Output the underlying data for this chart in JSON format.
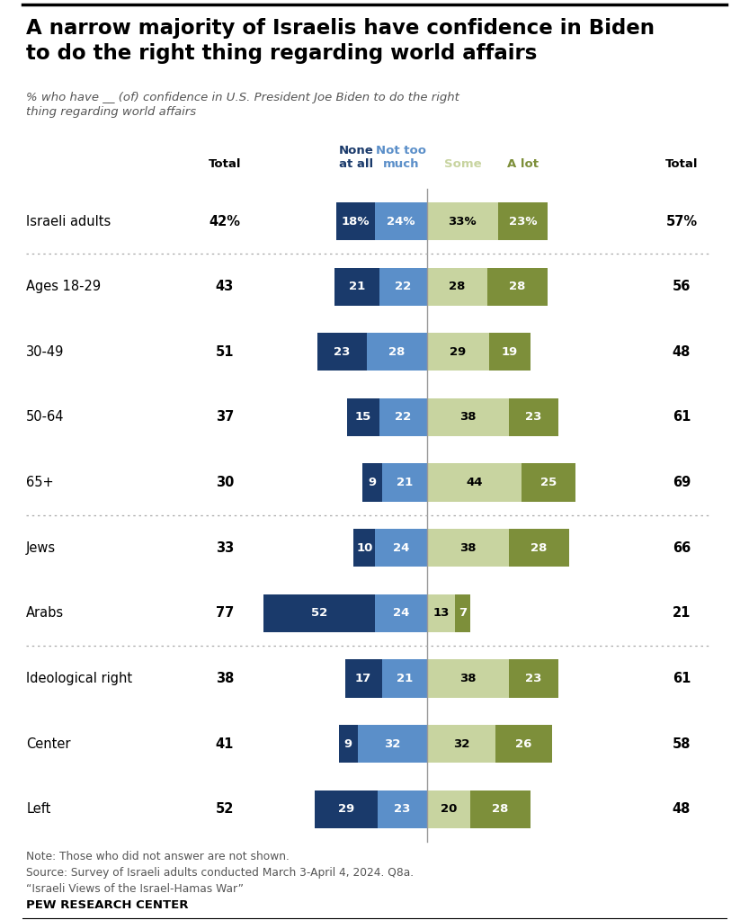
{
  "title": "A narrow majority of Israelis have confidence in Biden\nto do the right thing regarding world affairs",
  "subtitle": "% who have __ (of) confidence in U.S. President Joe Biden to do the right\nthing regarding world affairs",
  "categories": [
    "Israeli adults",
    "Ages 18-29",
    "30-49",
    "50-64",
    "65+",
    "Jews",
    "Arabs",
    "Ideological right",
    "Center",
    "Left"
  ],
  "none_at_all": [
    18,
    21,
    23,
    15,
    9,
    10,
    52,
    17,
    9,
    29
  ],
  "not_too_much": [
    24,
    22,
    28,
    22,
    21,
    24,
    24,
    21,
    32,
    23
  ],
  "some": [
    33,
    28,
    29,
    38,
    44,
    38,
    13,
    38,
    32,
    20
  ],
  "a_lot": [
    23,
    28,
    19,
    23,
    25,
    28,
    7,
    23,
    26,
    28
  ],
  "total_left": [
    42,
    43,
    51,
    37,
    30,
    33,
    77,
    38,
    41,
    52
  ],
  "total_right": [
    57,
    56,
    48,
    61,
    69,
    66,
    21,
    61,
    58,
    48
  ],
  "color_none": "#1a3a6b",
  "color_not_too": "#5b8fc9",
  "color_some": "#c8d4a0",
  "color_alot": "#7d8f3a",
  "sep_after_rows": [
    0,
    4,
    6
  ],
  "note_text": "Note: Those who did not answer are not shown.\nSource: Survey of Israeli adults conducted March 3-April 4, 2024. Q8a.\n“Israeli Views of the Israel-Hamas War”",
  "pew_text": "PEW RESEARCH CENTER"
}
